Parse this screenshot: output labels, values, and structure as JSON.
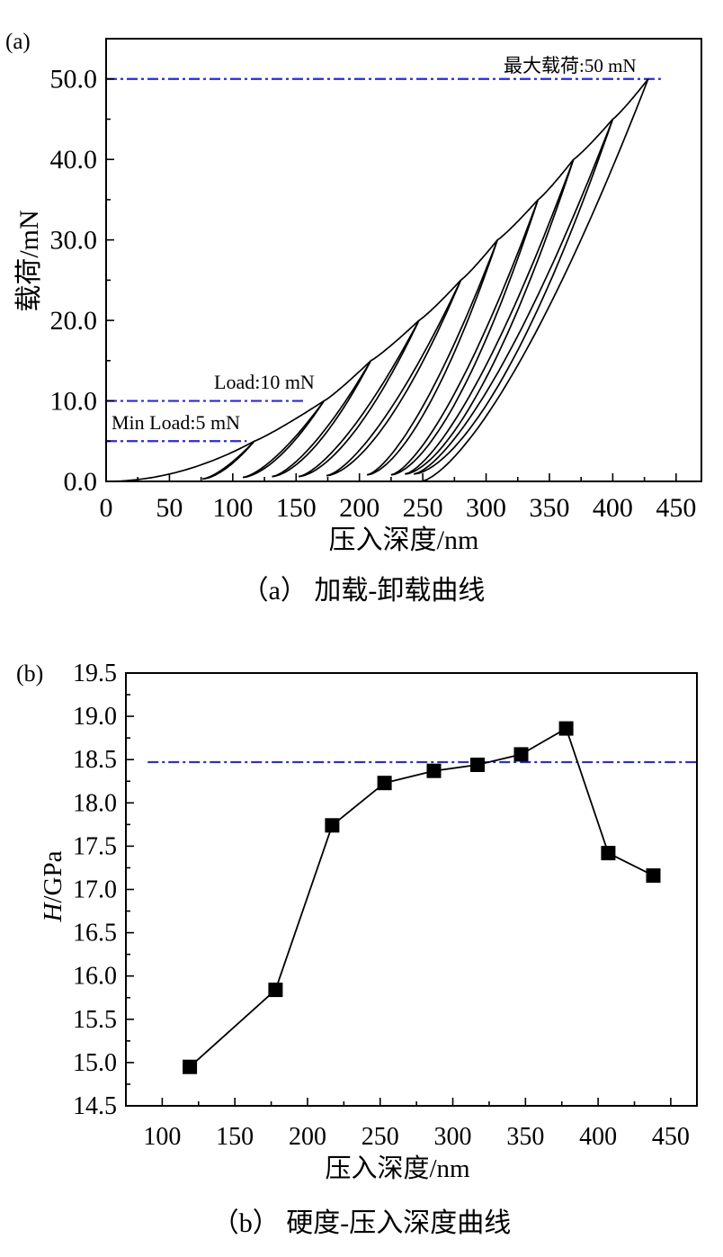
{
  "chart_data": [
    {
      "panel_label": "(a)",
      "type": "line",
      "caption": "（a） 加载-卸载曲线",
      "xlabel": "压入深度/nm",
      "ylabel": "载荷/mN",
      "xlim": [
        0,
        470
      ],
      "ylim": [
        0,
        55
      ],
      "xticks": [
        0,
        50,
        100,
        150,
        200,
        250,
        300,
        350,
        400,
        450
      ],
      "xtick_labels": [
        "0",
        "50",
        "100",
        "150",
        "200",
        "250",
        "300",
        "350",
        "400",
        "450"
      ],
      "yticks": [
        0,
        10,
        20,
        30,
        40,
        50
      ],
      "ytick_labels": [
        "0.0",
        "10.0",
        "20.0",
        "30.0",
        "40.0",
        "50.0"
      ],
      "grid": false,
      "cycles": [
        {
          "max_depth": 117,
          "max_load": 5,
          "unload_depth": 76,
          "unload_load": 0.3
        },
        {
          "max_depth": 172,
          "max_load": 10,
          "unload_depth": 108,
          "unload_load": 0.5
        },
        {
          "max_depth": 209,
          "max_load": 15,
          "unload_depth": 131,
          "unload_load": 0.6
        },
        {
          "max_depth": 247,
          "max_load": 20,
          "unload_depth": 152,
          "unload_load": 0.6
        },
        {
          "max_depth": 280,
          "max_load": 25,
          "unload_depth": 174,
          "unload_load": 0.7
        },
        {
          "max_depth": 309,
          "max_load": 30,
          "unload_depth": 206,
          "unload_load": 0.8
        },
        {
          "max_depth": 341,
          "max_load": 35,
          "unload_depth": 225,
          "unload_load": 0.8
        },
        {
          "max_depth": 369,
          "max_load": 40,
          "unload_depth": 236,
          "unload_load": 0.9
        },
        {
          "max_depth": 400,
          "max_load": 45,
          "unload_depth": 243,
          "unload_load": 0.9
        },
        {
          "max_depth": 428,
          "max_load": 50,
          "unload_depth": 249,
          "unload_load": 0
        }
      ],
      "reference_lines": [
        {
          "label": "最大载荷:50 mN",
          "y": 50
        },
        {
          "label": "Load:10 mN",
          "y": 10
        },
        {
          "label": "Min Load:5 mN",
          "y": 5
        }
      ],
      "series_color": "#000000",
      "reference_color": "#2b2bd6"
    },
    {
      "panel_label": "(b)",
      "type": "line",
      "caption": "（b） 硬度-压入深度曲线",
      "xlabel": "压入深度/nm",
      "ylabel": {
        "italic": "H",
        "text": "/GPa"
      },
      "xlim": [
        75,
        468
      ],
      "ylim": [
        14.5,
        19.5
      ],
      "xticks": [
        100,
        150,
        200,
        250,
        300,
        350,
        400,
        450
      ],
      "xtick_labels": [
        "100",
        "150",
        "200",
        "250",
        "300",
        "350",
        "400",
        "450"
      ],
      "yticks": [
        14.5,
        15.0,
        15.5,
        16.0,
        16.5,
        17.0,
        17.5,
        18.0,
        18.5,
        19.0,
        19.5
      ],
      "ytick_labels": [
        "14.5",
        "15.0",
        "15.5",
        "16.0",
        "16.5",
        "17.0",
        "17.5",
        "18.0",
        "18.5",
        "19.0",
        "19.5"
      ],
      "grid": false,
      "marker": "square",
      "x": [
        119,
        178,
        217,
        253,
        287,
        317,
        347,
        378,
        407,
        438
      ],
      "y": [
        14.95,
        15.84,
        17.74,
        18.23,
        18.37,
        18.44,
        18.56,
        18.86,
        17.42,
        17.16
      ],
      "reference_line": {
        "y": 18.47
      },
      "series_color": "#000000",
      "reference_color": "#2b2bd6"
    }
  ]
}
